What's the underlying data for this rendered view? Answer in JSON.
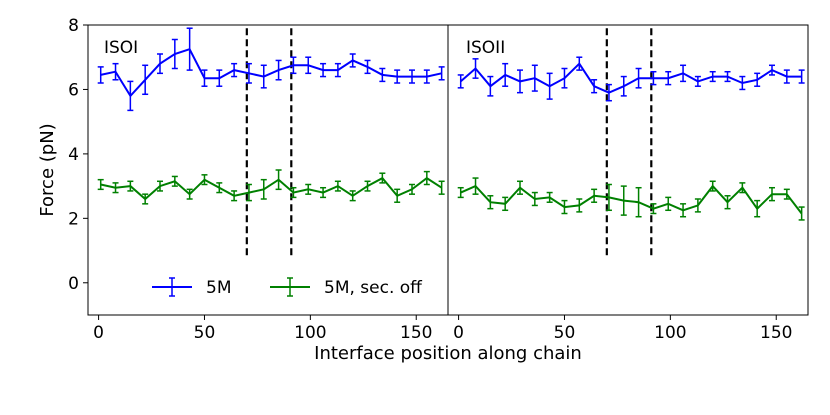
{
  "figure": {
    "xlabel": "Interface position along chain",
    "ylabel": "Force (pN)"
  },
  "chart_data": [
    {
      "type": "line",
      "panel_label": "ISOI",
      "xlabel": "Interface position along chain",
      "ylabel": "Force (pN)",
      "xlim": [
        -5,
        165
      ],
      "ylim": [
        -1,
        8
      ],
      "x_ticks": [
        0,
        50,
        100,
        150
      ],
      "y_ticks": [
        0,
        2,
        4,
        6,
        8
      ],
      "vlines": [
        70,
        91
      ],
      "legend": {
        "position": "bottom-left"
      },
      "series": [
        {
          "name": "5M",
          "color": "#0000ff",
          "x": [
            1,
            8,
            15,
            22,
            29,
            36,
            43,
            50,
            57,
            64,
            71,
            78,
            85,
            92,
            99,
            106,
            113,
            120,
            127,
            134,
            141,
            148,
            155,
            162
          ],
          "y": [
            6.45,
            6.55,
            5.8,
            6.3,
            6.8,
            7.1,
            7.25,
            6.35,
            6.35,
            6.6,
            6.5,
            6.4,
            6.6,
            6.75,
            6.75,
            6.6,
            6.6,
            6.9,
            6.7,
            6.45,
            6.4,
            6.4,
            6.4,
            6.5
          ],
          "err": [
            0.25,
            0.25,
            0.45,
            0.45,
            0.3,
            0.45,
            0.65,
            0.25,
            0.25,
            0.2,
            0.3,
            0.35,
            0.3,
            0.25,
            0.25,
            0.2,
            0.2,
            0.2,
            0.2,
            0.2,
            0.2,
            0.2,
            0.2,
            0.2
          ]
        },
        {
          "name": "5M, sec. off",
          "color": "#008000",
          "x": [
            1,
            8,
            15,
            22,
            29,
            36,
            43,
            50,
            57,
            64,
            71,
            78,
            85,
            92,
            99,
            106,
            113,
            120,
            127,
            134,
            141,
            148,
            155,
            162
          ],
          "y": [
            3.05,
            2.95,
            3.0,
            2.6,
            3.0,
            3.15,
            2.75,
            3.2,
            2.95,
            2.7,
            2.8,
            2.9,
            3.2,
            2.8,
            2.9,
            2.8,
            3.0,
            2.7,
            3.0,
            3.25,
            2.7,
            2.9,
            3.25,
            2.95
          ],
          "err": [
            0.15,
            0.15,
            0.15,
            0.15,
            0.15,
            0.15,
            0.15,
            0.15,
            0.15,
            0.15,
            0.25,
            0.3,
            0.3,
            0.15,
            0.15,
            0.15,
            0.15,
            0.15,
            0.15,
            0.15,
            0.2,
            0.15,
            0.2,
            0.2
          ]
        }
      ]
    },
    {
      "type": "line",
      "panel_label": "ISOII",
      "xlim": [
        -5,
        165
      ],
      "ylim": [
        -1,
        8
      ],
      "x_ticks": [
        0,
        50,
        100,
        150
      ],
      "y_ticks": [
        0,
        2,
        4,
        6,
        8
      ],
      "vlines": [
        70,
        91
      ],
      "series": [
        {
          "name": "5M",
          "color": "#0000ff",
          "x": [
            1,
            8,
            15,
            22,
            29,
            36,
            43,
            50,
            57,
            64,
            71,
            78,
            85,
            92,
            99,
            106,
            113,
            120,
            127,
            134,
            141,
            148,
            155,
            162
          ],
          "y": [
            6.25,
            6.65,
            6.1,
            6.45,
            6.25,
            6.35,
            6.1,
            6.35,
            6.8,
            6.1,
            5.9,
            6.1,
            6.35,
            6.35,
            6.35,
            6.5,
            6.25,
            6.4,
            6.4,
            6.2,
            6.3,
            6.6,
            6.4,
            6.4
          ],
          "err": [
            0.2,
            0.3,
            0.3,
            0.35,
            0.35,
            0.4,
            0.4,
            0.3,
            0.2,
            0.2,
            0.25,
            0.3,
            0.3,
            0.2,
            0.2,
            0.25,
            0.15,
            0.15,
            0.15,
            0.2,
            0.2,
            0.15,
            0.2,
            0.2
          ]
        },
        {
          "name": "5M, sec. off",
          "color": "#008000",
          "x": [
            1,
            8,
            15,
            22,
            29,
            36,
            43,
            50,
            57,
            64,
            71,
            78,
            85,
            92,
            99,
            106,
            113,
            120,
            127,
            134,
            141,
            148,
            155,
            162
          ],
          "y": [
            2.8,
            3.0,
            2.5,
            2.45,
            2.95,
            2.6,
            2.65,
            2.35,
            2.4,
            2.7,
            2.65,
            2.55,
            2.5,
            2.3,
            2.45,
            2.25,
            2.4,
            3.0,
            2.5,
            2.95,
            2.3,
            2.75,
            2.75,
            2.15
          ],
          "err": [
            0.15,
            0.25,
            0.2,
            0.2,
            0.2,
            0.2,
            0.15,
            0.2,
            0.2,
            0.2,
            0.4,
            0.45,
            0.45,
            0.15,
            0.2,
            0.2,
            0.2,
            0.15,
            0.2,
            0.15,
            0.25,
            0.2,
            0.15,
            0.2
          ]
        }
      ]
    }
  ]
}
